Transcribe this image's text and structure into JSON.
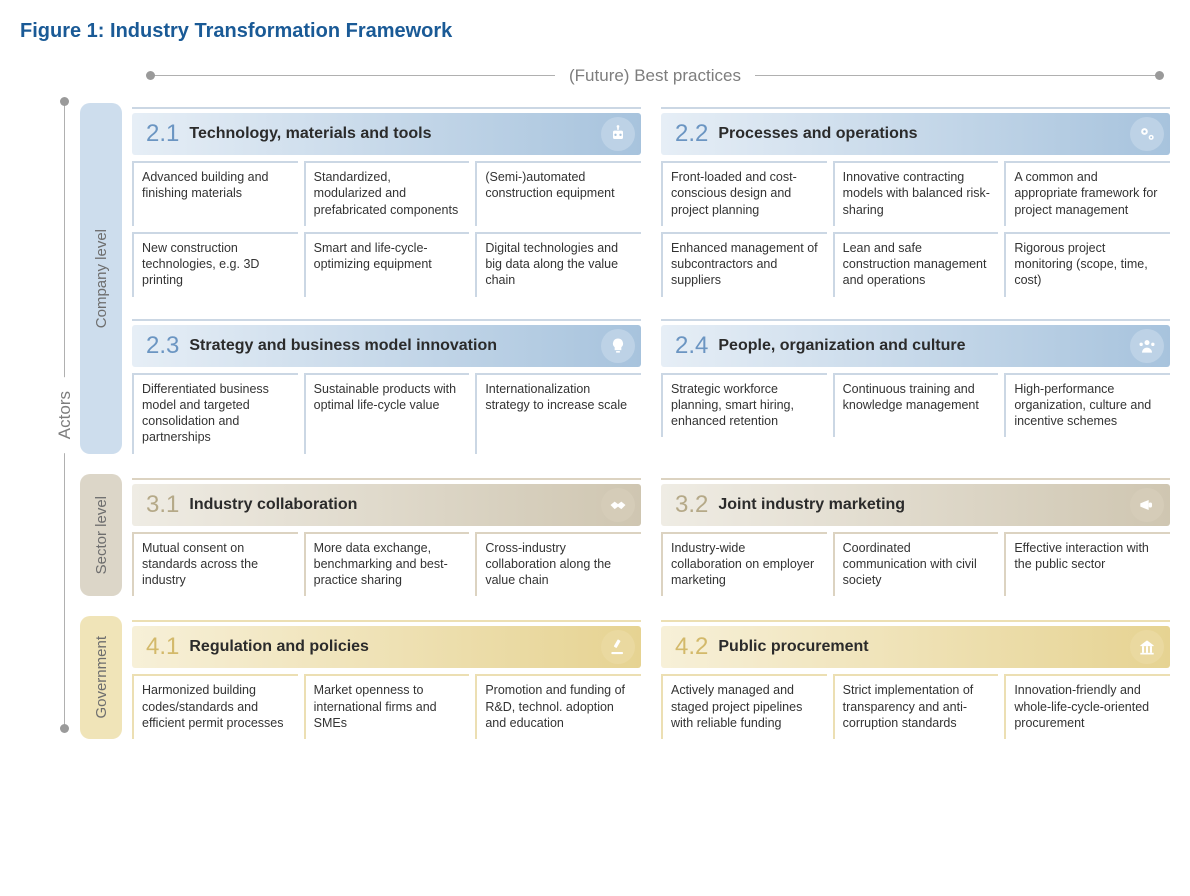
{
  "figure_title": "Figure 1: Industry Transformation Framework",
  "figure_title_color": "#1a5a96",
  "axes": {
    "top_label": "(Future) Best practices",
    "left_label": "Actors",
    "line_color": "#b0b0b0",
    "dot_color": "#9a9a9a",
    "label_color": "#7d7d7d"
  },
  "levels": [
    {
      "id": "company",
      "label": "Company level",
      "tag_bg": "#cddded",
      "num_color": "#6b95c2",
      "header_gradient_from": "#e6eef6",
      "header_gradient_to": "#a7c3dd",
      "icon_bg": "#bdd2e6",
      "icon_fg": "#ffffff",
      "cell_border": "#cbd7e4",
      "hr_color": "#cbd7e4",
      "rows": [
        [
          {
            "num": "2.1",
            "title": "Technology, materials and tools",
            "icon": "robot",
            "cells": [
              "Advanced building and finishing materials",
              "Standardized, modularized and prefabricated components",
              "(Semi-)automated construction equipment",
              "New construction technologies, e.g. 3D printing",
              "Smart and life-cycle-optimizing equipment",
              "Digital technologies and big data along the value chain"
            ],
            "grid_rows": 2
          },
          {
            "num": "2.2",
            "title": "Processes and operations",
            "icon": "gears",
            "cells": [
              "Front-loaded and cost-conscious design and project planning",
              "Innovative contracting models with balanced risk-sharing",
              "A common and appropriate framework for project management",
              "Enhanced management of subcontractors and suppliers",
              "Lean and safe construction management and operations",
              "Rigorous project monitoring (scope, time, cost)"
            ],
            "grid_rows": 2
          }
        ],
        [
          {
            "num": "2.3",
            "title": "Strategy and business model innovation",
            "icon": "bulb",
            "cells": [
              "Differentiated business model and targeted consolidation and partnerships",
              "Sustainable products with optimal life-cycle value",
              "Internationalization strategy to increase scale"
            ],
            "grid_rows": 1
          },
          {
            "num": "2.4",
            "title": "People, organization and culture",
            "icon": "people",
            "cells": [
              "Strategic workforce planning, smart hiring, enhanced retention",
              "Continuous training and knowledge management",
              "High-performance organization, culture and incentive schemes"
            ],
            "grid_rows": 1
          }
        ]
      ]
    },
    {
      "id": "sector",
      "label": "Sector level",
      "tag_bg": "#dcd6c8",
      "num_color": "#b5a988",
      "header_gradient_from": "#efece4",
      "header_gradient_to": "#cfc6b1",
      "icon_bg": "#d5ccb8",
      "icon_fg": "#ffffff",
      "cell_border": "#dcd3c1",
      "hr_color": "#dcd3c1",
      "rows": [
        [
          {
            "num": "3.1",
            "title": "Industry collaboration",
            "icon": "handshake",
            "cells": [
              "Mutual consent on standards across the industry",
              "More data exchange, benchmarking and best-practice sharing",
              "Cross-industry collaboration along the value chain"
            ],
            "grid_rows": 1
          },
          {
            "num": "3.2",
            "title": "Joint industry marketing",
            "icon": "megaphone",
            "cells": [
              "Industry-wide collaboration on employer marketing",
              "Coordinated communication with civil society",
              "Effective interaction with the public sector"
            ],
            "grid_rows": 1
          }
        ]
      ]
    },
    {
      "id": "government",
      "label": "Government",
      "tag_bg": "#f0e4b8",
      "num_color": "#d3b96a",
      "header_gradient_from": "#f7f0d8",
      "header_gradient_to": "#e6d392",
      "icon_bg": "#ead9a0",
      "icon_fg": "#ffffff",
      "cell_border": "#ecdfb3",
      "hr_color": "#ecdfb3",
      "rows": [
        [
          {
            "num": "4.1",
            "title": "Regulation and policies",
            "icon": "gavel",
            "cells": [
              "Harmonized building codes/standards and efficient permit processes",
              "Market openness to international firms and SMEs",
              "Promotion and funding of R&D, technol. adoption and education"
            ],
            "grid_rows": 1
          },
          {
            "num": "4.2",
            "title": "Public procurement",
            "icon": "building",
            "cells": [
              "Actively managed and staged project pipelines with reliable funding",
              "Strict implementation of transparency and anti-corruption standards",
              "Innovation-friendly and whole-life-cycle-oriented procurement"
            ],
            "grid_rows": 1
          }
        ]
      ]
    }
  ]
}
